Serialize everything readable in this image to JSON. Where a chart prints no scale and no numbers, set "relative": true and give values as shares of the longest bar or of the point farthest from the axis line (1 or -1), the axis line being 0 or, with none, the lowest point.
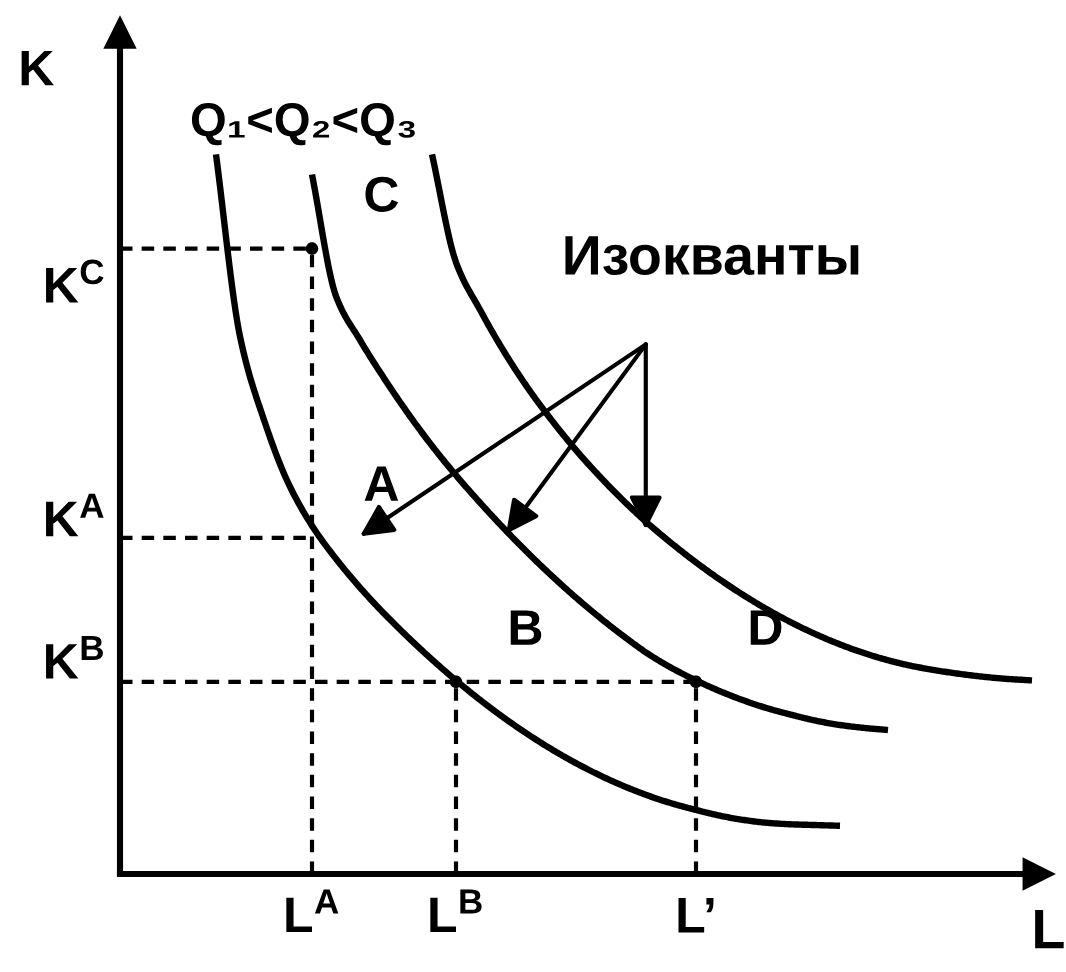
{
  "chart_data": {
    "type": "line",
    "relative": true,
    "xlabel": "L",
    "ylabel": "K",
    "categories": [
      null,
      null,
      null,
      null,
      null,
      null,
      null,
      null,
      "L$^{A}$",
      null,
      null,
      null,
      null,
      null,
      "L$^{B}$",
      null,
      null,
      null,
      null,
      null,
      null,
      null,
      null,
      null,
      "L’",
      null,
      null,
      null,
      null,
      null,
      null,
      null,
      null,
      null,
      null,
      null,
      null,
      null,
      null
    ],
    "series": [
      {
        "color": "#000000",
        "line_style": "dashed",
        "values": [
          0.869,
          0.869,
          0.869,
          0.869,
          0.869,
          0.869,
          0.869,
          0.869,
          0.869,
          null,
          null,
          null,
          null,
          null,
          null,
          null,
          null,
          null,
          null,
          null,
          null,
          null,
          null,
          null,
          null,
          null,
          null,
          null,
          null,
          null,
          null,
          null,
          null,
          null,
          null,
          null,
          null,
          null,
          null
        ]
      },
      {
        "color": "#000000",
        "line_style": "dashed",
        "values": [
          0.467,
          0.467,
          0.467,
          0.467,
          0.467,
          0.467,
          0.467,
          0.467,
          0.467,
          null,
          null,
          null,
          null,
          null,
          null,
          null,
          null,
          null,
          null,
          null,
          null,
          null,
          null,
          null,
          null,
          null,
          null,
          null,
          null,
          null,
          null,
          null,
          null,
          null,
          null,
          null,
          null,
          null,
          null
        ]
      },
      {
        "color": "#000000",
        "line_style": "dashed",
        "values": [
          0.267,
          0.267,
          0.267,
          0.267,
          0.267,
          0.267,
          0.267,
          0.267,
          0.267,
          0.267,
          0.267,
          0.267,
          0.267,
          0.267,
          0.267,
          0.267,
          0.267,
          0.267,
          0.267,
          0.267,
          0.267,
          0.267,
          0.267,
          0.267,
          0.267,
          null,
          null,
          null,
          null,
          null,
          null,
          null,
          null,
          null,
          null,
          null,
          null,
          null,
          null
        ]
      },
      {
        "type": "lollipop",
        "color": "#000000",
        "line_style": "dashed",
        "marker": "circle",
        "values": [
          null,
          null,
          null,
          null,
          null,
          null,
          null,
          null,
          0.869,
          null,
          null,
          null,
          null,
          null,
          0.267,
          null,
          null,
          null,
          null,
          null,
          null,
          null,
          null,
          null,
          0.267,
          null,
          null,
          null,
          null,
          null,
          null,
          null,
          null,
          null,
          null,
          null,
          null,
          null,
          null
        ]
      },
      {
        "color": "#000000",
        "values": [
          null,
          null,
          null,
          null,
          1.0,
          0.747,
          0.631,
          0.544,
          0.484,
          0.438,
          0.398,
          0.362,
          0.329,
          0.298,
          0.269,
          0.242,
          0.217,
          0.194,
          0.173,
          0.154,
          0.137,
          0.122,
          0.109,
          0.098,
          0.089,
          0.081,
          0.075,
          0.071,
          0.069,
          0.068,
          0.067,
          null,
          null,
          null,
          null,
          null,
          null,
          null,
          null
        ]
      },
      {
        "color": "#000000",
        "values": [
          null,
          null,
          null,
          null,
          null,
          null,
          null,
          null,
          0.972,
          0.803,
          0.742,
          0.689,
          0.64,
          0.595,
          0.554,
          0.516,
          0.48,
          0.446,
          0.414,
          0.384,
          0.356,
          0.33,
          0.306,
          0.286,
          0.269,
          0.254,
          0.241,
          0.23,
          0.221,
          0.213,
          0.207,
          0.203,
          0.2,
          null,
          null,
          null,
          null,
          null,
          null
        ]
      },
      {
        "color": "#000000",
        "values": [
          null,
          null,
          null,
          null,
          null,
          null,
          null,
          null,
          null,
          null,
          null,
          null,
          null,
          1.0,
          0.85,
          0.784,
          0.726,
          0.675,
          0.63,
          0.589,
          0.552,
          0.518,
          0.487,
          0.459,
          0.433,
          0.409,
          0.387,
          0.367,
          0.349,
          0.333,
          0.319,
          0.307,
          0.297,
          0.289,
          0.283,
          0.278,
          0.274,
          0.271,
          0.269
        ]
      }
    ],
    "annotations": [
      "Q₁<Q₂<Q₃",
      "Изокванты",
      "K$^{C}$",
      "K$^{A}$",
      "K$^{B}$",
      {
        "text": "C",
        "x": "L$^{A}$",
        "y": 0.869
      },
      {
        "text": "A",
        "x": "L$^{A}$",
        "y": 0.467
      },
      {
        "text": "B",
        "x": "L$^{B}$",
        "y": 0.267
      },
      {
        "text": "D",
        "x": "L’",
        "y": 0.267
      }
    ]
  }
}
